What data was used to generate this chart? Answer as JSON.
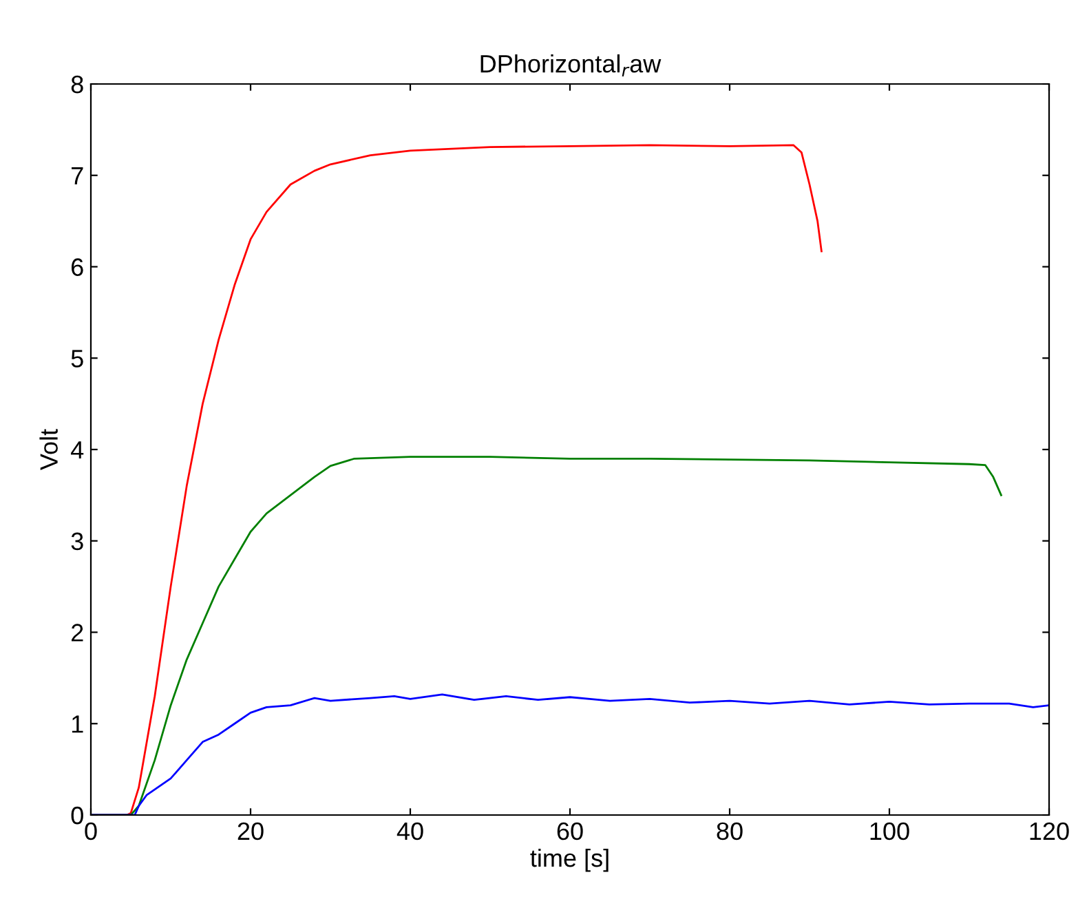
{
  "chart_data": {
    "type": "line",
    "title": "DPhorizontal$_{r}$aw",
    "xlabel": "time [s]",
    "ylabel": "Volt",
    "xlim": [
      0,
      120
    ],
    "xticks": [
      0,
      20,
      40,
      60,
      80,
      100,
      120
    ],
    "ylim": [
      0,
      8
    ],
    "yticks": [
      0,
      1,
      2,
      3,
      4,
      5,
      6,
      7,
      8
    ],
    "grid": false,
    "legend": false,
    "series": [
      {
        "color": "#ff0000",
        "x": [
          0,
          4.5,
          5,
          6,
          8,
          10,
          12,
          14,
          16,
          18,
          20,
          22,
          25,
          28,
          30,
          35,
          40,
          50,
          60,
          70,
          80,
          88,
          89,
          90,
          91,
          91.5
        ],
        "values": [
          0,
          0,
          0.02,
          0.3,
          1.3,
          2.5,
          3.6,
          4.5,
          5.2,
          5.8,
          6.3,
          6.6,
          6.9,
          7.05,
          7.12,
          7.22,
          7.27,
          7.31,
          7.32,
          7.33,
          7.32,
          7.33,
          7.25,
          6.9,
          6.5,
          6.17
        ]
      },
      {
        "color": "#008000",
        "x": [
          0,
          5,
          6,
          8,
          10,
          12,
          14,
          16,
          18,
          20,
          22,
          25,
          28,
          30,
          33,
          40,
          50,
          60,
          70,
          80,
          90,
          100,
          110,
          112,
          113,
          114
        ],
        "values": [
          0,
          0,
          0.1,
          0.6,
          1.2,
          1.7,
          2.1,
          2.5,
          2.8,
          3.1,
          3.3,
          3.5,
          3.7,
          3.82,
          3.9,
          3.92,
          3.92,
          3.9,
          3.9,
          3.89,
          3.88,
          3.86,
          3.84,
          3.83,
          3.7,
          3.5
        ]
      },
      {
        "color": "#0000ff",
        "x": [
          0,
          5.5,
          6,
          7,
          8,
          10,
          12,
          14,
          16,
          18,
          20,
          22,
          25,
          28,
          30,
          35,
          38,
          40,
          44,
          48,
          52,
          56,
          60,
          65,
          70,
          75,
          80,
          85,
          90,
          95,
          100,
          105,
          110,
          115,
          118,
          120
        ],
        "values": [
          0,
          0,
          0.1,
          0.22,
          0.28,
          0.4,
          0.6,
          0.8,
          0.88,
          1.0,
          1.12,
          1.18,
          1.2,
          1.28,
          1.25,
          1.28,
          1.3,
          1.27,
          1.32,
          1.26,
          1.3,
          1.26,
          1.29,
          1.25,
          1.27,
          1.23,
          1.25,
          1.22,
          1.25,
          1.21,
          1.24,
          1.21,
          1.22,
          1.22,
          1.18,
          1.2
        ]
      }
    ]
  }
}
